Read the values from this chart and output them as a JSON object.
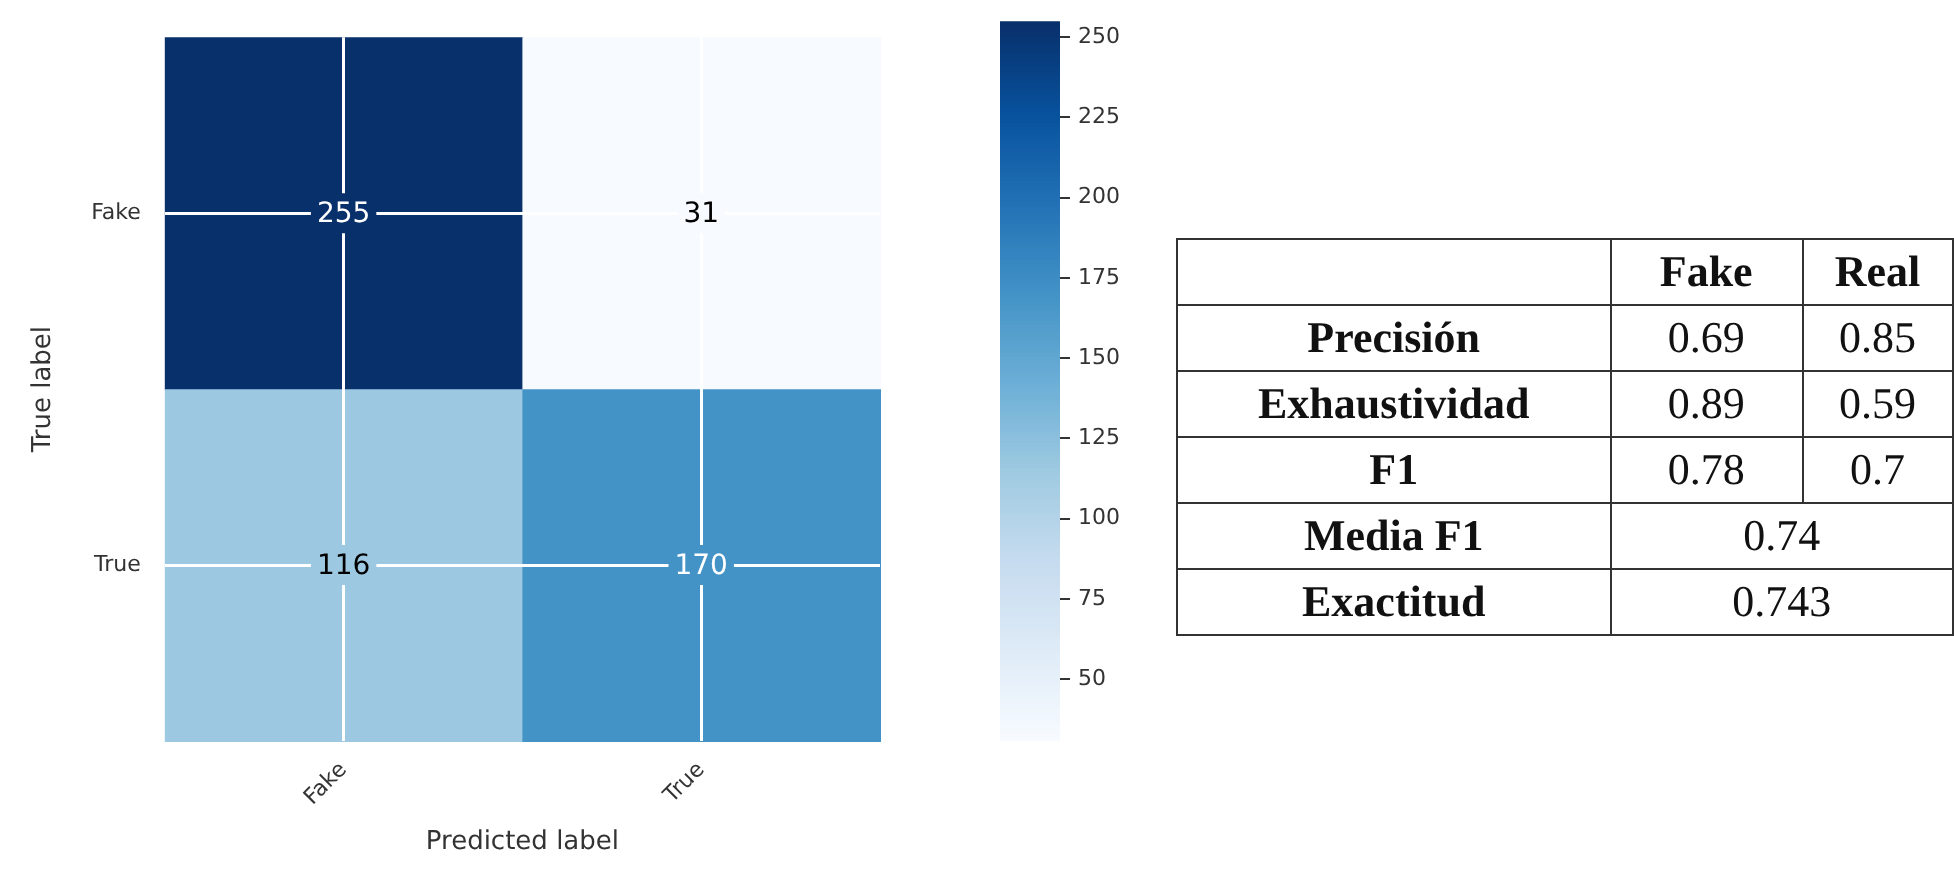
{
  "chart_data": [
    {
      "type": "heatmap",
      "xlabel": "Predicted label",
      "ylabel": "True label",
      "categories": [
        "Fake",
        "True"
      ],
      "y_categories": [
        "Fake",
        "True"
      ],
      "cells": [
        [
          255,
          31
        ],
        [
          116,
          170
        ]
      ],
      "data_labels": true,
      "grid": true,
      "clim": [
        31,
        255
      ],
      "cticks": [
        50,
        75,
        100,
        125,
        150,
        175,
        200,
        225,
        250
      ]
    },
    {
      "type": "other",
      "categories": [
        "Fake",
        "Real"
      ],
      "y_categories": [
        "Precisión",
        "Exhaustividad",
        "F1",
        "Media F1",
        "Exactitud"
      ],
      "cell_labels": [
        [
          "0.69",
          "0.85"
        ],
        [
          "0.89",
          "0.59"
        ],
        [
          "0.78",
          "0.7"
        ],
        [
          "0.74",
          null
        ],
        [
          "0.743",
          null
        ]
      ]
    }
  ]
}
